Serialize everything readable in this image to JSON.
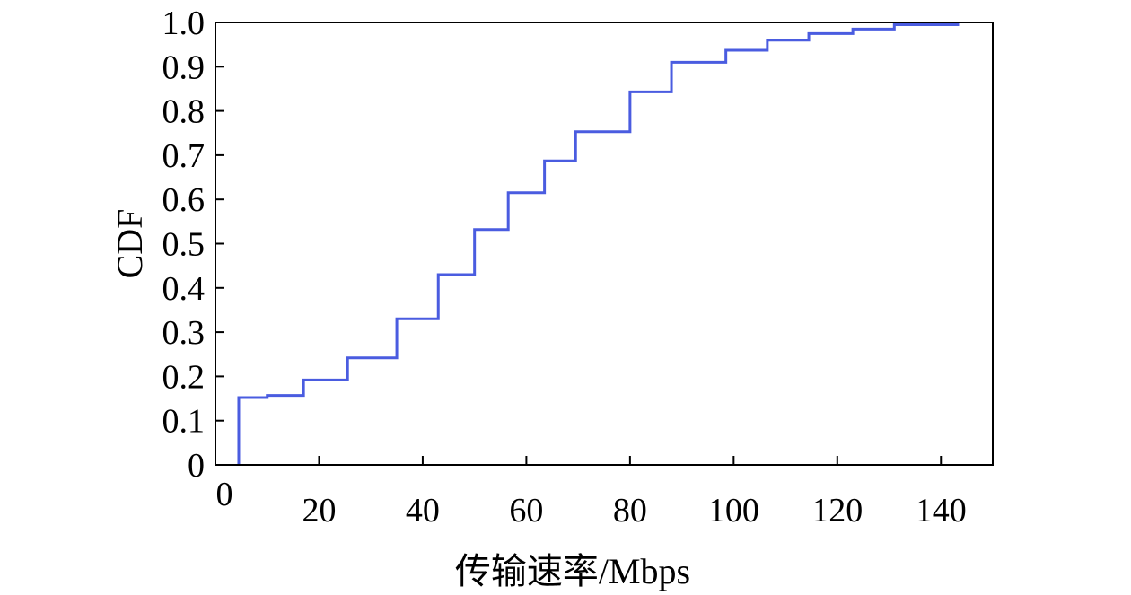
{
  "chart_data": {
    "type": "line",
    "title": "",
    "xlabel": "传输速率/Mbps",
    "ylabel": "CDF",
    "xlim": [
      0,
      150
    ],
    "ylim": [
      0,
      1.0
    ],
    "x_ticks": [
      0,
      20,
      40,
      60,
      80,
      100,
      120,
      140
    ],
    "x_tick_labels": [
      "0",
      "20",
      "40",
      "60",
      "80",
      "100",
      "120",
      "140"
    ],
    "y_ticks": [
      0,
      0.1,
      0.2,
      0.3,
      0.4,
      0.5,
      0.6,
      0.7,
      0.8,
      0.9,
      1.0
    ],
    "y_tick_labels": [
      "0",
      "0.1",
      "0.2",
      "0.3",
      "0.4",
      "0.5",
      "0.6",
      "0.7",
      "0.8",
      "0.9",
      "1.0"
    ],
    "grid": false,
    "step": true,
    "series": [
      {
        "color": "#4a5ce0",
        "x": [
          4.5,
          4.5,
          10,
          17,
          25.5,
          35,
          43,
          50,
          56.5,
          63.5,
          69.5,
          80,
          88,
          98.5,
          106.5,
          114.5,
          123,
          131,
          143.5
        ],
        "y": [
          0,
          0.152,
          0.157,
          0.192,
          0.242,
          0.33,
          0.43,
          0.532,
          0.615,
          0.687,
          0.753,
          0.843,
          0.91,
          0.937,
          0.96,
          0.975,
          0.985,
          0.995,
          0.995
        ]
      }
    ]
  }
}
